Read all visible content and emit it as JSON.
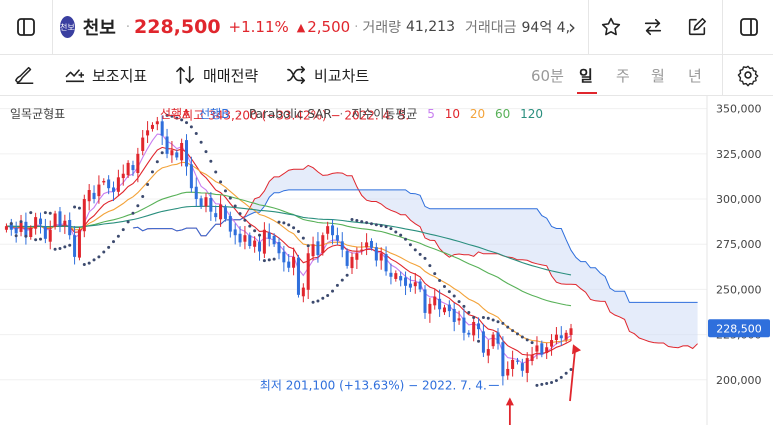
{
  "header": {
    "stock_name": "천보",
    "logo_text": "천보",
    "price": "228,500",
    "change_pct": "+1.11%",
    "change_arrow": "▲",
    "change_amt": "2,500",
    "volume_label": "거래량",
    "volume_value": "41,213",
    "turnover_label": "거래대금",
    "turnover_value": "94억 4,",
    "more_arrow": "›"
  },
  "toolbar": {
    "aux_indicator": "보조지표",
    "trade_strategy": "매매전략",
    "compare_chart": "비교차트",
    "periods": [
      "60분",
      "일",
      "주",
      "월",
      "년"
    ],
    "active_period": "일"
  },
  "colors": {
    "up": "#e0262d",
    "down": "#2f6fdc",
    "spanA": "#e0262d",
    "spanB": "#2f6fdc",
    "sar": "#3c4a6e",
    "ma5": "#c87ef0",
    "ma10": "#e0262d",
    "ma20": "#f3a33a",
    "ma60": "#58b158",
    "ma120": "#2a8f7e"
  },
  "chart_data": {
    "type": "candlestick",
    "indicator_title": "일목균형표",
    "legend": {
      "spanA": "선행A",
      "spanB": "선행B",
      "sar": "Parabolic SAR",
      "ma_label": "지수이동평균",
      "ma_periods": [
        "5",
        "10",
        "20",
        "60",
        "120"
      ]
    },
    "y_ticks": [
      350000,
      325000,
      300000,
      275000,
      250000,
      225000,
      200000
    ],
    "y_tick_labels": [
      "350,000",
      "325,000",
      "300,000",
      "275,000",
      "250,000",
      "225,000",
      "200,000"
    ],
    "ylim": [
      175000,
      357000
    ],
    "current_price": 228500,
    "current_price_label": "228,500",
    "high_annotation": "최고 343,200 (−33.42%) − 2022. 4. 5.",
    "low_annotation": "최저 201,100 (+13.63%) − 2022. 7. 4.",
    "high_value": 343200,
    "low_value": 201100,
    "closes": [
      285000,
      283000,
      281000,
      287000,
      279000,
      284000,
      290000,
      286000,
      278000,
      283000,
      292000,
      285000,
      288000,
      280000,
      268000,
      283000,
      300000,
      305000,
      300000,
      308000,
      310000,
      306000,
      304000,
      312000,
      314000,
      320000,
      316000,
      325000,
      334000,
      338000,
      341000,
      343000,
      335000,
      325000,
      327000,
      323000,
      331000,
      318000,
      306000,
      300000,
      296000,
      301000,
      293000,
      290000,
      297000,
      289000,
      282000,
      280000,
      276000,
      280000,
      274000,
      277000,
      271000,
      283000,
      278000,
      275000,
      270000,
      265000,
      262000,
      268000,
      247000,
      251000,
      270000,
      275000,
      269000,
      280000,
      285000,
      280000,
      277000,
      272000,
      263000,
      268000,
      270000,
      272000,
      276000,
      273000,
      266000,
      270000,
      260000,
      257000,
      259000,
      255000,
      252000,
      251000,
      254000,
      250000,
      237000,
      242000,
      246000,
      239000,
      240000,
      238000,
      232000,
      234000,
      226000,
      225000,
      232000,
      228000,
      215000,
      217000,
      225000,
      220000,
      202000,
      206000,
      211000,
      210000,
      205000,
      212000,
      214000,
      219000,
      214000,
      218000,
      222000,
      225000,
      223000,
      226000,
      228500
    ]
  }
}
